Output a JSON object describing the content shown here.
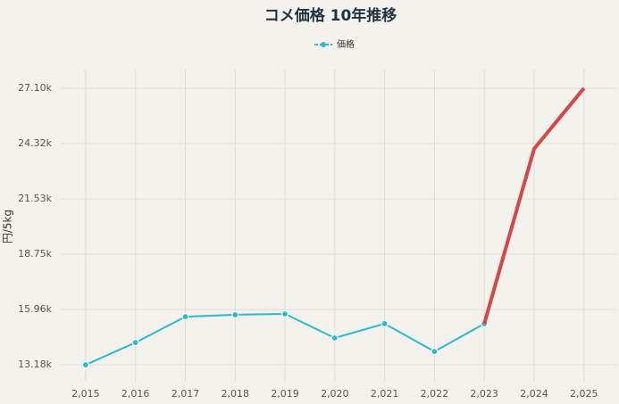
{
  "chart_data": {
    "type": "line",
    "title": "コメ価格 10年推移",
    "y_label": "円/5kg",
    "x": [
      2015,
      2016,
      2017,
      2018,
      2019,
      2020,
      2021,
      2022,
      2023,
      2024,
      2025
    ],
    "xticks": [
      {
        "value": 2015,
        "label": "2,015"
      },
      {
        "value": 2016,
        "label": "2,016"
      },
      {
        "value": 2017,
        "label": "2,017"
      },
      {
        "value": 2018,
        "label": "2,018"
      },
      {
        "value": 2019,
        "label": "2,019"
      },
      {
        "value": 2020,
        "label": "2,020"
      },
      {
        "value": 2021,
        "label": "2,021"
      },
      {
        "value": 2022,
        "label": "2,022"
      },
      {
        "value": 2023,
        "label": "2,023"
      },
      {
        "value": 2024,
        "label": "2,024"
      },
      {
        "value": 2025,
        "label": "2,025"
      }
    ],
    "xlim": [
      2014.5,
      2025.65
    ],
    "ylim": [
      12330,
      28040
    ],
    "yticks": [
      {
        "value": 13180,
        "label": "13.18k"
      },
      {
        "value": 15960,
        "label": "15.96k"
      },
      {
        "value": 18750,
        "label": "18.75k"
      },
      {
        "value": 21530,
        "label": "21.53k"
      },
      {
        "value": 24320,
        "label": "24.32k"
      },
      {
        "value": 27100,
        "label": "27.10k"
      }
    ],
    "grid": true,
    "series": [
      {
        "name": "価格",
        "color": "#2bb8d1",
        "markers": true,
        "values": [
          13180,
          14300,
          15600,
          15700,
          15740,
          14530,
          15250,
          13850,
          15250,
          null,
          null
        ]
      },
      {
        "color": "#d94444",
        "markers": false,
        "values": [
          null,
          null,
          null,
          null,
          null,
          null,
          null,
          null,
          15250,
          24050,
          27100
        ]
      }
    ]
  }
}
